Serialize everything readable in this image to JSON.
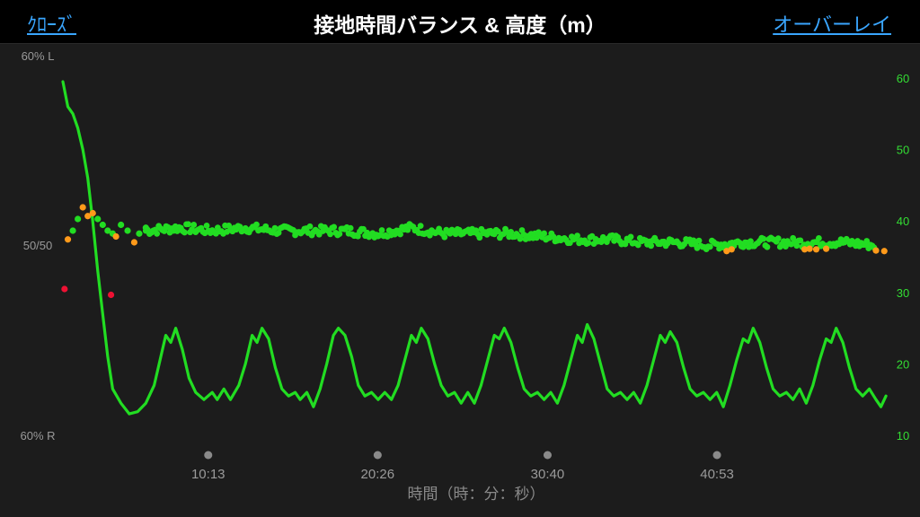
{
  "header": {
    "close_label": "ｸﾛｰｽﾞ",
    "title": "接地時間バランス & 高度（m）",
    "overlay_label": "オーバーレイ"
  },
  "chart_data": {
    "type": "line+scatter",
    "xlabel": "時間（時：分：秒）",
    "x_ticks": [
      "10:13",
      "20:26",
      "30:40",
      "40:53"
    ],
    "x_tick_minutes": [
      10.22,
      20.43,
      30.67,
      40.88
    ],
    "x_range_minutes": [
      0,
      49
    ],
    "left_axis": {
      "labels": [
        "60% L",
        "50/50",
        "60% R"
      ],
      "range": [
        60,
        -60
      ]
    },
    "right_axis": {
      "ticks": [
        10,
        20,
        30,
        40,
        50,
        60
      ],
      "range": [
        10,
        60
      ]
    },
    "colors": {
      "elevation": "#22dd22",
      "balance_good": "#22dd22",
      "balance_warn": "#ff9a1a",
      "balance_bad": "#ee1133"
    },
    "elevation": {
      "name": "",
      "axis": "right",
      "points": [
        [
          0.0,
          59.5
        ],
        [
          0.3,
          56.0
        ],
        [
          0.6,
          55.0
        ],
        [
          0.9,
          53.0
        ],
        [
          1.2,
          50.0
        ],
        [
          1.5,
          46.0
        ],
        [
          1.8,
          40.0
        ],
        [
          2.1,
          33.0
        ],
        [
          2.4,
          27.0
        ],
        [
          2.7,
          21.0
        ],
        [
          3.0,
          16.5
        ],
        [
          3.5,
          14.5
        ],
        [
          4.0,
          13.0
        ],
        [
          4.5,
          13.3
        ],
        [
          5.0,
          14.5
        ],
        [
          5.5,
          17.0
        ],
        [
          5.9,
          21.0
        ],
        [
          6.2,
          24.0
        ],
        [
          6.5,
          23.0
        ],
        [
          6.8,
          25.0
        ],
        [
          7.2,
          22.0
        ],
        [
          7.6,
          18.0
        ],
        [
          8.0,
          16.0
        ],
        [
          8.5,
          15.0
        ],
        [
          9.0,
          16.0
        ],
        [
          9.3,
          15.0
        ],
        [
          9.7,
          16.5
        ],
        [
          10.1,
          15.0
        ],
        [
          10.6,
          17.0
        ],
        [
          11.0,
          20.0
        ],
        [
          11.4,
          24.0
        ],
        [
          11.7,
          23.0
        ],
        [
          12.0,
          25.0
        ],
        [
          12.4,
          23.5
        ],
        [
          12.8,
          19.5
        ],
        [
          13.2,
          16.5
        ],
        [
          13.6,
          15.5
        ],
        [
          14.0,
          16.0
        ],
        [
          14.3,
          15.0
        ],
        [
          14.7,
          16.0
        ],
        [
          15.1,
          14.0
        ],
        [
          15.5,
          16.5
        ],
        [
          15.9,
          20.0
        ],
        [
          16.3,
          24.0
        ],
        [
          16.6,
          25.0
        ],
        [
          17.0,
          24.0
        ],
        [
          17.4,
          21.0
        ],
        [
          17.8,
          17.0
        ],
        [
          18.2,
          15.5
        ],
        [
          18.6,
          16.0
        ],
        [
          19.0,
          15.0
        ],
        [
          19.4,
          16.0
        ],
        [
          19.8,
          15.0
        ],
        [
          20.2,
          17.0
        ],
        [
          20.6,
          20.5
        ],
        [
          21.0,
          24.0
        ],
        [
          21.3,
          23.0
        ],
        [
          21.6,
          25.0
        ],
        [
          22.0,
          23.5
        ],
        [
          22.4,
          20.0
        ],
        [
          22.8,
          17.0
        ],
        [
          23.2,
          15.5
        ],
        [
          23.6,
          16.0
        ],
        [
          24.0,
          14.5
        ],
        [
          24.4,
          16.0
        ],
        [
          24.8,
          14.5
        ],
        [
          25.2,
          17.0
        ],
        [
          25.6,
          20.5
        ],
        [
          26.0,
          24.0
        ],
        [
          26.3,
          23.5
        ],
        [
          26.6,
          25.0
        ],
        [
          27.0,
          23.0
        ],
        [
          27.4,
          19.5
        ],
        [
          27.8,
          16.5
        ],
        [
          28.2,
          15.5
        ],
        [
          28.6,
          16.0
        ],
        [
          29.0,
          15.0
        ],
        [
          29.4,
          16.0
        ],
        [
          29.8,
          14.5
        ],
        [
          30.2,
          17.0
        ],
        [
          30.6,
          20.5
        ],
        [
          31.0,
          24.0
        ],
        [
          31.3,
          23.0
        ],
        [
          31.6,
          25.5
        ],
        [
          32.0,
          23.5
        ],
        [
          32.4,
          20.0
        ],
        [
          32.8,
          16.5
        ],
        [
          33.2,
          15.5
        ],
        [
          33.6,
          16.0
        ],
        [
          34.0,
          15.0
        ],
        [
          34.4,
          16.0
        ],
        [
          34.8,
          14.5
        ],
        [
          35.2,
          17.0
        ],
        [
          35.6,
          20.5
        ],
        [
          36.0,
          24.0
        ],
        [
          36.3,
          23.0
        ],
        [
          36.6,
          24.5
        ],
        [
          37.0,
          23.0
        ],
        [
          37.4,
          19.5
        ],
        [
          37.8,
          16.5
        ],
        [
          38.2,
          15.5
        ],
        [
          38.6,
          16.0
        ],
        [
          39.0,
          15.0
        ],
        [
          39.4,
          16.0
        ],
        [
          39.8,
          14.0
        ],
        [
          40.2,
          17.0
        ],
        [
          40.6,
          20.5
        ],
        [
          41.0,
          23.5
        ],
        [
          41.3,
          23.0
        ],
        [
          41.6,
          25.0
        ],
        [
          42.0,
          23.0
        ],
        [
          42.4,
          19.5
        ],
        [
          42.8,
          16.5
        ],
        [
          43.2,
          15.5
        ],
        [
          43.6,
          16.0
        ],
        [
          44.0,
          15.0
        ],
        [
          44.4,
          16.5
        ],
        [
          44.8,
          14.5
        ],
        [
          45.2,
          17.0
        ],
        [
          45.6,
          20.5
        ],
        [
          46.0,
          23.5
        ],
        [
          46.3,
          23.0
        ],
        [
          46.6,
          25.0
        ],
        [
          47.0,
          23.0
        ],
        [
          47.4,
          19.5
        ],
        [
          47.8,
          16.5
        ],
        [
          48.2,
          15.5
        ],
        [
          48.6,
          16.5
        ],
        [
          49.0,
          15.0
        ],
        [
          49.3,
          14.0
        ],
        [
          49.6,
          15.5
        ]
      ]
    },
    "balance": {
      "name": "",
      "axis": "left",
      "unit": "percent_offset_from_50 (positive = left)",
      "points": [
        [
          0.1,
          -6.0,
          "bad"
        ],
        [
          0.3,
          2.5,
          "warn"
        ],
        [
          0.6,
          4.0,
          "good"
        ],
        [
          0.9,
          6.0,
          "good"
        ],
        [
          1.2,
          8.0,
          "warn"
        ],
        [
          1.5,
          6.5,
          "warn"
        ],
        [
          1.8,
          7.0,
          "warn"
        ],
        [
          2.1,
          6.0,
          "good"
        ],
        [
          2.4,
          5.0,
          "good"
        ],
        [
          2.7,
          4.0,
          "good"
        ],
        [
          3.0,
          3.5,
          "good"
        ],
        [
          2.9,
          -7.0,
          "bad"
        ],
        [
          3.2,
          3.0,
          "warn"
        ],
        [
          3.5,
          5.0,
          "good"
        ],
        [
          3.9,
          4.0,
          "good"
        ],
        [
          4.3,
          2.0,
          "warn"
        ],
        [
          4.6,
          3.5,
          "good"
        ],
        [
          5.0,
          4.5,
          "good"
        ]
      ],
      "trend": [
        [
          5.0,
          4.0
        ],
        [
          7.0,
          4.5
        ],
        [
          9.0,
          4.0
        ],
        [
          11.0,
          4.5
        ],
        [
          13.0,
          4.0
        ],
        [
          15.0,
          4.0
        ],
        [
          17.0,
          4.0
        ],
        [
          19.0,
          3.5
        ],
        [
          21.0,
          4.5
        ],
        [
          23.0,
          3.5
        ],
        [
          25.0,
          3.5
        ],
        [
          27.0,
          3.5
        ],
        [
          29.0,
          3.0
        ],
        [
          31.0,
          2.5
        ],
        [
          33.0,
          2.5
        ],
        [
          35.0,
          2.0
        ],
        [
          37.0,
          2.0
        ],
        [
          39.0,
          1.5
        ],
        [
          41.0,
          2.0
        ],
        [
          43.0,
          2.0
        ],
        [
          45.0,
          2.0
        ],
        [
          47.0,
          2.0
        ],
        [
          49.0,
          1.5
        ]
      ],
      "warn_points": [
        [
          40.0,
          0.5
        ],
        [
          40.3,
          0.8
        ],
        [
          44.7,
          0.8
        ],
        [
          45.0,
          0.9
        ],
        [
          45.4,
          0.8
        ],
        [
          46.0,
          0.9
        ],
        [
          49.0,
          0.6
        ],
        [
          49.5,
          0.5
        ]
      ]
    }
  }
}
